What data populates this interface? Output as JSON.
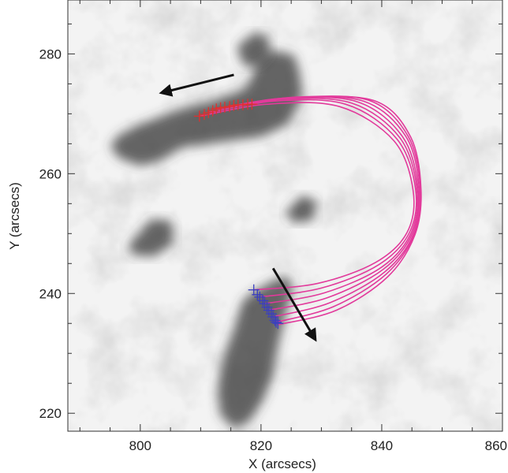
{
  "chart_data": {
    "type": "scatter",
    "xlabel": "X (arcsecs)",
    "ylabel": "Y (arcsecs)",
    "xlim": [
      788,
      860
    ],
    "ylim": [
      217,
      289
    ],
    "x_ticks": [
      800,
      820,
      840,
      860
    ],
    "y_ticks": [
      220,
      240,
      260,
      280
    ],
    "x_tick_labels": [
      "800",
      "820",
      "840",
      "860"
    ],
    "y_tick_labels": [
      "220",
      "240",
      "260",
      "280"
    ],
    "grid": false,
    "background": "grayscale intensity map",
    "colors": {
      "loops": "#e23a9b",
      "north_footpoints": "#e0302e",
      "south_footpoints": "#3a3fc0",
      "arrows": "#111111"
    },
    "loops": [
      {
        "points": [
          [
            809.8,
            269.6
          ],
          [
            821,
            271.6
          ],
          [
            833,
            271.2
          ],
          [
            842,
            265.5
          ],
          [
            845.2,
            257.2
          ],
          [
            844.2,
            250.2
          ],
          [
            839,
            245.2
          ],
          [
            829.5,
            241.7
          ],
          [
            818.8,
            240.6
          ]
        ]
      },
      {
        "points": [
          [
            811.3,
            270.2
          ],
          [
            822,
            272.1
          ],
          [
            834,
            271.6
          ],
          [
            842.5,
            265.8
          ],
          [
            845.6,
            257.4
          ],
          [
            844.6,
            250.2
          ],
          [
            839.5,
            244.8
          ],
          [
            830,
            240.9
          ],
          [
            819.8,
            239.4
          ]
        ]
      },
      {
        "points": [
          [
            812.6,
            270.8
          ],
          [
            823,
            272.4
          ],
          [
            835,
            271.8
          ],
          [
            843,
            266
          ],
          [
            845.8,
            257.6
          ],
          [
            844.9,
            250.2
          ],
          [
            840,
            244.4
          ],
          [
            830.5,
            240.1
          ],
          [
            820.6,
            238.3
          ]
        ]
      },
      {
        "points": [
          [
            814,
            271.1
          ],
          [
            824,
            272.6
          ],
          [
            836,
            272
          ],
          [
            843.5,
            266.1
          ],
          [
            846,
            257.6
          ],
          [
            845.1,
            250.1
          ],
          [
            840.2,
            244
          ],
          [
            831,
            239.3
          ],
          [
            821.3,
            237.2
          ]
        ]
      },
      {
        "points": [
          [
            815.5,
            271.4
          ],
          [
            825,
            272.7
          ],
          [
            837,
            272.1
          ],
          [
            844,
            266.2
          ],
          [
            846.2,
            257.6
          ],
          [
            845.3,
            250
          ],
          [
            840.5,
            243.6
          ],
          [
            831.5,
            238.5
          ],
          [
            822,
            236.1
          ]
        ]
      },
      {
        "points": [
          [
            817,
            271.5
          ],
          [
            826,
            272.8
          ],
          [
            838,
            272.2
          ],
          [
            844.4,
            266.2
          ],
          [
            846.4,
            257.5
          ],
          [
            845.4,
            249.9
          ],
          [
            840.7,
            243.2
          ],
          [
            832,
            237.8
          ],
          [
            822.5,
            235.2
          ]
        ]
      },
      {
        "points": [
          [
            818.5,
            271.6
          ],
          [
            827,
            272.8
          ],
          [
            839,
            272.1
          ],
          [
            844.8,
            266.1
          ],
          [
            846.5,
            257.4
          ],
          [
            845.5,
            249.8
          ],
          [
            841,
            242.8
          ],
          [
            832.5,
            237.2
          ],
          [
            822.9,
            234.8
          ]
        ]
      }
    ],
    "north_footpoints": [
      [
        809.8,
        269.6
      ],
      [
        810.6,
        269.9
      ],
      [
        811.3,
        270.2
      ],
      [
        812,
        270.5
      ],
      [
        812.6,
        270.8
      ],
      [
        813.3,
        271
      ],
      [
        814,
        271.1
      ],
      [
        814.8,
        271.2
      ],
      [
        815.5,
        271.4
      ],
      [
        816.2,
        271.5
      ],
      [
        817,
        271.5
      ],
      [
        817.8,
        271.6
      ],
      [
        818.5,
        271.6
      ]
    ],
    "south_footpoints": [
      [
        818.8,
        240.6
      ],
      [
        819.4,
        239.8
      ],
      [
        819.8,
        239.4
      ],
      [
        820.3,
        238.8
      ],
      [
        820.6,
        238.3
      ],
      [
        821,
        237.7
      ],
      [
        821.3,
        237.2
      ],
      [
        821.7,
        236.6
      ],
      [
        822,
        236.1
      ],
      [
        822.3,
        235.5
      ],
      [
        822.5,
        235.2
      ],
      [
        822.8,
        235
      ]
    ],
    "arrows": [
      {
        "from": [
          815.5,
          276.5
        ],
        "to": [
          803.5,
          273.5
        ]
      },
      {
        "from": [
          822,
          244.2
        ],
        "to": [
          829,
          232.3
        ]
      }
    ],
    "dark_regions": [
      {
        "points": [
          [
            796.5,
            266.5
          ],
          [
            800,
            268.2
          ],
          [
            806,
            270.6
          ],
          [
            812,
            272.2
          ],
          [
            817,
            274
          ],
          [
            818.5,
            276
          ],
          [
            819.5,
            279.5
          ],
          [
            822,
            280.6
          ],
          [
            825.5,
            279.8
          ],
          [
            826.5,
            276.5
          ],
          [
            826.8,
            272.8
          ],
          [
            824.5,
            268.4
          ],
          [
            820.5,
            266.3
          ],
          [
            814.5,
            265.4
          ],
          [
            807,
            264.4
          ],
          [
            803,
            262
          ],
          [
            800,
            261.3
          ],
          [
            796.5,
            262.6
          ],
          [
            795,
            264.6
          ]
        ]
      },
      {
        "points": [
          [
            815.5,
            234
          ],
          [
            817,
            238.8
          ],
          [
            819.5,
            240.7
          ],
          [
            822.5,
            242.4
          ],
          [
            824.6,
            242.8
          ],
          [
            825.2,
            240.5
          ],
          [
            824.3,
            237.2
          ],
          [
            823,
            232
          ],
          [
            822,
            226.5
          ],
          [
            820.5,
            222.5
          ],
          [
            818,
            218.5
          ],
          [
            815.5,
            217.4
          ],
          [
            813.2,
            219.8
          ],
          [
            812.8,
            224
          ],
          [
            813.8,
            229.5
          ]
        ]
      },
      {
        "points": [
          [
            816,
            281.2
          ],
          [
            818.8,
            283.5
          ],
          [
            821.2,
            282.8
          ],
          [
            821.6,
            280
          ],
          [
            819.2,
            277.8
          ],
          [
            817,
            278.2
          ]
        ]
      },
      {
        "points": [
          [
            798,
            248
          ],
          [
            802,
            252.5
          ],
          [
            805.2,
            252
          ],
          [
            805.4,
            248.4
          ],
          [
            802.4,
            246.2
          ],
          [
            798.8,
            246.4
          ]
        ]
      },
      {
        "points": [
          [
            824,
            253.4
          ],
          [
            826.8,
            256.4
          ],
          [
            829.2,
            255.4
          ],
          [
            828.6,
            252.2
          ],
          [
            825.6,
            251.8
          ]
        ]
      }
    ]
  }
}
